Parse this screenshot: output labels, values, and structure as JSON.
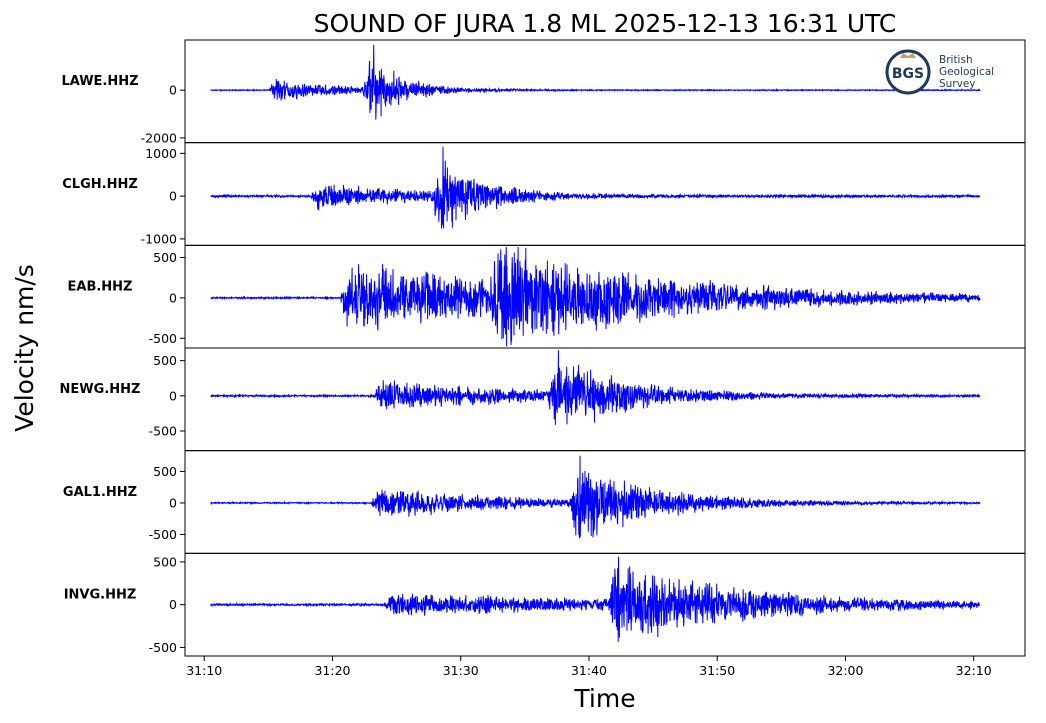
{
  "chart_data": {
    "type": "line",
    "title": "SOUND OF JURA 1.8 ML   2025-12-13 16:31 UTC",
    "xlabel": "Time",
    "ylabel": "Velocity nm/s",
    "x_ticks": [
      "31:10",
      "31:20",
      "31:30",
      "31:40",
      "31:50",
      "32:00",
      "32:10"
    ],
    "x_range_seconds": [
      -1.5,
      64.0
    ],
    "trace_span_seconds": [
      0.5,
      60.5
    ],
    "line_color": "#0000ff",
    "grid": false,
    "series": [
      {
        "name": "LAWE.HHZ",
        "yticks": [
          {
            "label": "0",
            "value": 0
          },
          {
            "label": "-2000",
            "value": -2000
          }
        ],
        "ylim": [
          -2200,
          2100
        ],
        "noise": 25,
        "arrivals": [
          {
            "t": 5.0,
            "amp": 600,
            "decay": 5
          },
          {
            "t": 12.4,
            "amp": 1900,
            "decay": 2.5
          }
        ],
        "peak": 1900
      },
      {
        "name": "CLGH.HHZ",
        "yticks": [
          {
            "label": "1000",
            "value": 1000
          },
          {
            "label": "0",
            "value": 0
          },
          {
            "label": "-1000",
            "value": -1000
          }
        ],
        "ylim": [
          -1150,
          1250
        ],
        "noise": 30,
        "arrivals": [
          {
            "t": 8.3,
            "amp": 350,
            "decay": 9
          },
          {
            "t": 17.8,
            "amp": 1150,
            "decay": 3
          }
        ],
        "peak": 1150
      },
      {
        "name": "EAB.HHZ",
        "yticks": [
          {
            "label": "500",
            "value": 500
          },
          {
            "label": "0",
            "value": 0
          },
          {
            "label": "-500",
            "value": -500
          }
        ],
        "ylim": [
          -620,
          650
        ],
        "noise": 12,
        "arrivals": [
          {
            "t": 10.6,
            "amp": 520,
            "decay": 18
          },
          {
            "t": 22.3,
            "amp": 600,
            "decay": 10
          }
        ],
        "peak": 600
      },
      {
        "name": "NEWG.HHZ",
        "yticks": [
          {
            "label": "500",
            "value": 500
          },
          {
            "label": "0",
            "value": 0
          },
          {
            "label": "-500",
            "value": -500
          }
        ],
        "ylim": [
          -780,
          680
        ],
        "noise": 15,
        "arrivals": [
          {
            "t": 13.2,
            "amp": 250,
            "decay": 12
          },
          {
            "t": 26.8,
            "amp": 650,
            "decay": 5
          }
        ],
        "peak": 650
      },
      {
        "name": "GAL1.HHZ",
        "yticks": [
          {
            "label": "500",
            "value": 500
          },
          {
            "label": "0",
            "value": 0
          },
          {
            "label": "-500",
            "value": -500
          }
        ],
        "ylim": [
          -800,
          830
        ],
        "noise": 12,
        "arrivals": [
          {
            "t": 13.0,
            "amp": 300,
            "decay": 10
          },
          {
            "t": 28.5,
            "amp": 720,
            "decay": 6
          }
        ],
        "peak": 750
      },
      {
        "name": "INVG.HHZ",
        "yticks": [
          {
            "label": "500",
            "value": 500
          },
          {
            "label": "0",
            "value": 0
          },
          {
            "label": "-500",
            "value": -500
          }
        ],
        "ylim": [
          -600,
          600
        ],
        "noise": 15,
        "arrivals": [
          {
            "t": 14.0,
            "amp": 150,
            "decay": 20
          },
          {
            "t": 31.5,
            "amp": 540,
            "decay": 9
          }
        ],
        "peak": 560
      }
    ]
  },
  "logo": {
    "mark": "BGS",
    "line1": "British",
    "line2": "Geological",
    "line3": "Survey",
    "ring_color": "#1d3b56",
    "crown_color": "#c9a25a"
  }
}
